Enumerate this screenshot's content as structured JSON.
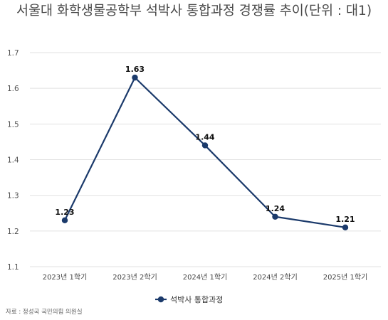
{
  "chart_data": {
    "type": "line",
    "title": "서울대 화학생물공학부 석박사 통합과정 경쟁률 추이(단위 : 대1)",
    "categories": [
      "2023년 1학기",
      "2023년 2학기",
      "2024년 1학기",
      "2024년 2학기",
      "2025년 1학기"
    ],
    "series": [
      {
        "name": "석박사 통합과정",
        "values": [
          1.23,
          1.63,
          1.44,
          1.24,
          1.21
        ],
        "color": "#1b3a6b"
      }
    ],
    "ylim": [
      1.1,
      1.7
    ],
    "yticks": [
      "1.1",
      "1.2",
      "1.3",
      "1.4",
      "1.5",
      "1.6",
      "1.7"
    ],
    "xlabel": "",
    "ylabel": "",
    "grid": true,
    "legend_position": "bottom-center"
  },
  "source": "자료 : 정성국 국민의힘 의원실"
}
